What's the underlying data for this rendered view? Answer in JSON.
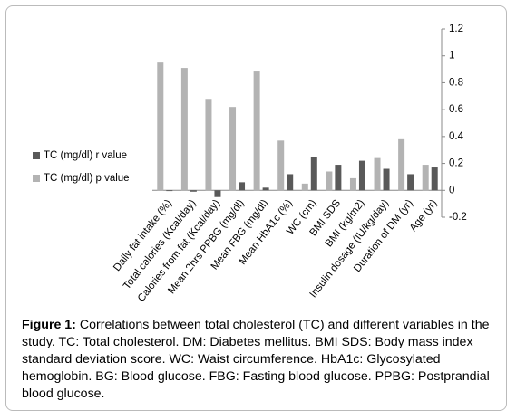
{
  "chart_data": {
    "type": "bar",
    "categories": [
      "Daily fat intake (%)",
      "Total calories (Kcal/day)",
      "Calories from fat (Kcal/day)",
      "Mean 2hrs PPBG (mg/dl)",
      "Mean FBG (mg/dl)",
      "Mean HbA1c (%)",
      "WC (cm)",
      "BMI SDS",
      "BMI (kg/m2)",
      "Insulin dosage (IU/kg/day)",
      "Duration of DM (yr)",
      "Age (yr)"
    ],
    "series": [
      {
        "name": "TC (mg/dl) r value",
        "color": "#595959",
        "values": [
          -0.005,
          -0.01,
          -0.05,
          0.06,
          0.02,
          0.12,
          0.25,
          0.19,
          0.22,
          0.16,
          0.12,
          0.17
        ]
      },
      {
        "name": "TC (mg/dl) p value",
        "color": "#b3b3b3",
        "values": [
          0.95,
          0.91,
          0.68,
          0.62,
          0.89,
          0.37,
          0.05,
          0.14,
          0.09,
          0.24,
          0.38,
          0.19
        ]
      }
    ],
    "ylim": [
      -0.2,
      1.2
    ],
    "yticks": [
      -0.2,
      0,
      0.2,
      0.4,
      0.6,
      0.8,
      1,
      1.2
    ],
    "legend": "left"
  },
  "caption": {
    "label": "Figure 1:",
    "text": "Correlations between total cholesterol (TC) and different variables in the study. TC: Total cholesterol. DM: Diabetes mellitus. BMI SDS: Body mass index standard deviation score. WC: Waist circumference. HbA1c: Glycosylated hemoglobin. BG: Blood glucose. FBG: Fasting blood glucose. PPBG: Postprandial blood glucose."
  }
}
